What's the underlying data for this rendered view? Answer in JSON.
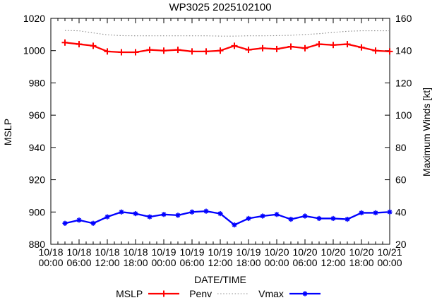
{
  "window": {
    "background": "#ffffff"
  },
  "chart_data": {
    "type": "line",
    "title": "WP3025 2025102100",
    "xlabel": "DATE/TIME",
    "ylabel_left": "MSLP",
    "ylabel_right": "Maximum Winds [kt]",
    "y_left_range": [
      880,
      1020
    ],
    "y_left_ticks": [
      880,
      900,
      920,
      940,
      960,
      980,
      1000,
      1020
    ],
    "y_right_range": [
      20,
      160
    ],
    "y_right_ticks": [
      20,
      40,
      60,
      80,
      100,
      120,
      140,
      160
    ],
    "x_range_hours": [
      0,
      72
    ],
    "x_major_tick_hours": 6,
    "x_minor_tick_hours": 1.5,
    "x_tick_labels": [
      {
        "date": "10/18",
        "time": "00:00"
      },
      {
        "date": "10/18",
        "time": "06:00"
      },
      {
        "date": "10/18",
        "time": "12:00"
      },
      {
        "date": "10/18",
        "time": "18:00"
      },
      {
        "date": "10/19",
        "time": "00:00"
      },
      {
        "date": "10/19",
        "time": "06:00"
      },
      {
        "date": "10/19",
        "time": "12:00"
      },
      {
        "date": "10/19",
        "time": "18:00"
      },
      {
        "date": "10/20",
        "time": "00:00"
      },
      {
        "date": "10/20",
        "time": "06:00"
      },
      {
        "date": "10/20",
        "time": "12:00"
      },
      {
        "date": "10/20",
        "time": "18:00"
      },
      {
        "date": "10/21",
        "time": "00:00"
      }
    ],
    "grid": false,
    "legend_position": "bottom-center",
    "series": [
      {
        "name": "MSLP",
        "color": "#ff0000",
        "style": "solid",
        "marker": "plus",
        "axis": "left",
        "x_hours": [
          3,
          6,
          9,
          12,
          15,
          18,
          21,
          24,
          27,
          30,
          33,
          36,
          39,
          42,
          45,
          48,
          51,
          54,
          57,
          60,
          63,
          66,
          69,
          72
        ],
        "values": [
          1005,
          1004,
          1003,
          999.5,
          999,
          999,
          1000.5,
          1000,
          1000.5,
          999.5,
          999.5,
          1000,
          1003,
          1000.5,
          1001.5,
          1001,
          1002.5,
          1001.5,
          1004,
          1003.5,
          1004,
          1002,
          1000,
          999.5
        ]
      },
      {
        "name": "Penv",
        "color": "#8c8c8c",
        "style": "dotted",
        "marker": "none",
        "axis": "left",
        "x_hours": [
          3,
          6,
          9,
          12,
          15,
          18,
          21,
          24,
          27,
          30,
          33,
          36,
          39,
          42,
          45,
          48,
          51,
          54,
          57,
          60,
          63,
          66,
          69,
          72
        ],
        "values": [
          1012.5,
          1012.3,
          1011,
          1009.8,
          1009.3,
          1009.2,
          1009.2,
          1009.2,
          1009.2,
          1009.2,
          1009.2,
          1009,
          1009,
          1009.2,
          1009.2,
          1009.3,
          1009.5,
          1010,
          1010.5,
          1011.3,
          1012,
          1012.3,
          1012.3,
          1012.3
        ]
      },
      {
        "name": "Vmax",
        "color": "#0000ff",
        "style": "solid",
        "marker": "asterisk",
        "axis": "right",
        "x_hours": [
          3,
          6,
          9,
          12,
          15,
          18,
          21,
          24,
          27,
          30,
          33,
          36,
          39,
          42,
          45,
          48,
          51,
          54,
          57,
          60,
          63,
          66,
          69,
          72
        ],
        "values": [
          33,
          35,
          33,
          37,
          40,
          39,
          37,
          38.5,
          38,
          40,
          40.5,
          39,
          32,
          36,
          37.5,
          38.5,
          35.5,
          37.5,
          36,
          36,
          35.5,
          39.5,
          39.5,
          40
        ]
      }
    ]
  }
}
